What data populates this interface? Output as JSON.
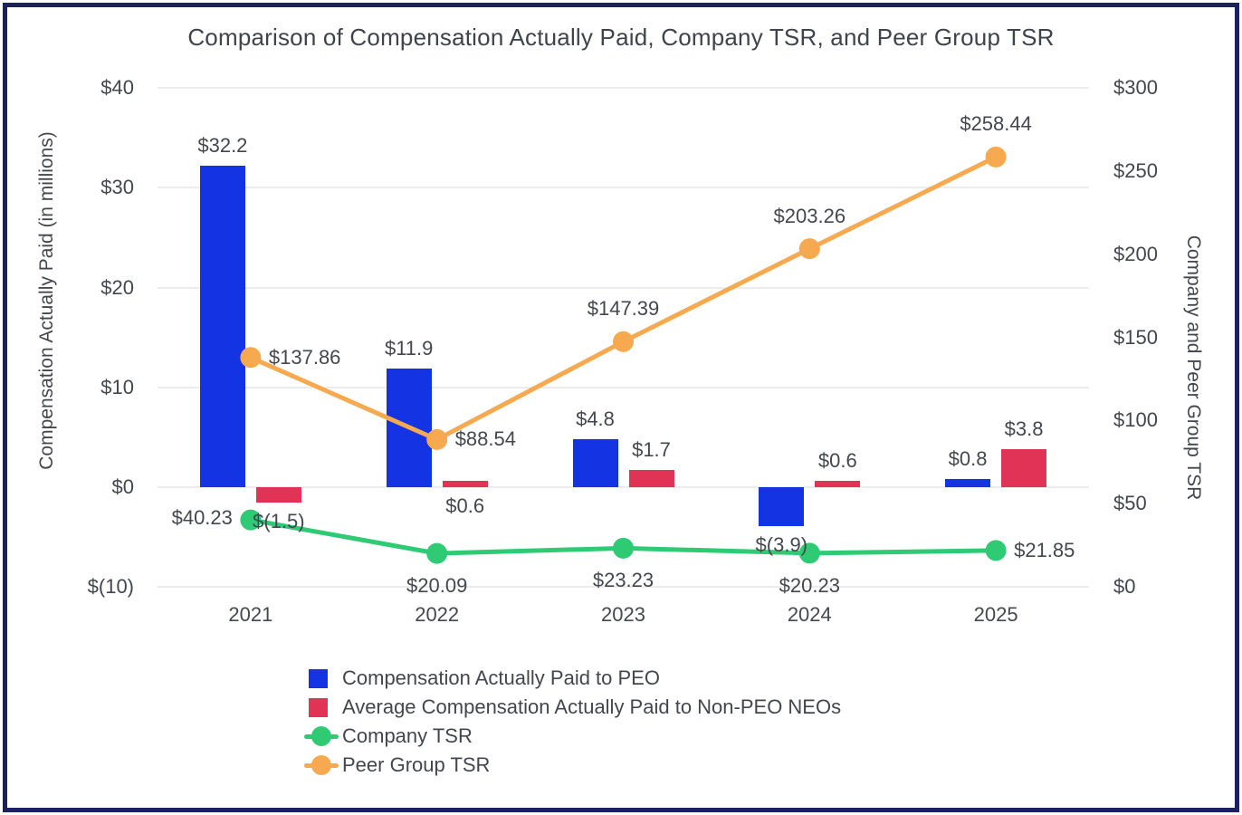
{
  "title": "Comparison of Compensation Actually Paid, Company TSR, and Peer Group TSR",
  "colors": {
    "peo_bar": "#1433e3",
    "neo_bar": "#e03356",
    "company_tsr": "#2fcb74",
    "peer_tsr": "#f6a94e",
    "grid": "#ececec",
    "text": "#43474d",
    "frame_border": "#1b2161"
  },
  "chart_data": {
    "type": "combo-bar-line",
    "categories": [
      "2021",
      "2022",
      "2023",
      "2024",
      "2025"
    ],
    "grid": "horizontal",
    "left_axis": {
      "label": "Compensation Actually Paid (in millions)",
      "ylim": [
        -10,
        40
      ],
      "ticks": [
        {
          "value": 40,
          "label": "$40"
        },
        {
          "value": 30,
          "label": "$30"
        },
        {
          "value": 20,
          "label": "$20"
        },
        {
          "value": 10,
          "label": "$10"
        },
        {
          "value": 0,
          "label": "$0"
        },
        {
          "value": -10,
          "label": "$(10)"
        }
      ]
    },
    "right_axis": {
      "label": "Company and Peer Group TSR",
      "ylim": [
        0,
        300
      ],
      "ticks": [
        {
          "value": 300,
          "label": "$300"
        },
        {
          "value": 250,
          "label": "$250"
        },
        {
          "value": 200,
          "label": "$200"
        },
        {
          "value": 150,
          "label": "$150"
        },
        {
          "value": 100,
          "label": "$100"
        },
        {
          "value": 50,
          "label": "$50"
        },
        {
          "value": 0,
          "label": "$0"
        }
      ]
    },
    "bar_series": [
      {
        "key": "peo",
        "name": "Compensation Actually Paid to PEO",
        "axis": "left",
        "color": "#1433e3",
        "values": [
          32.2,
          11.9,
          4.8,
          -3.9,
          0.8
        ],
        "labels": [
          "$32.2",
          "$11.9",
          "$4.8",
          "$(3.9)",
          "$0.8"
        ],
        "label_pos": [
          "above",
          "above",
          "above",
          "below",
          "above"
        ]
      },
      {
        "key": "neo",
        "name": "Average Compensation Actually Paid to Non-PEO NEOs",
        "axis": "left",
        "color": "#e03356",
        "values": [
          -1.5,
          0.6,
          1.7,
          0.6,
          3.8
        ],
        "labels": [
          "$(1.5)",
          "$0.6",
          "$1.7",
          "$0.6",
          "$3.8"
        ],
        "label_pos": [
          "below",
          "below",
          "above",
          "above",
          "above"
        ]
      }
    ],
    "line_series": [
      {
        "key": "company-tsr",
        "name": "Company TSR",
        "axis": "right",
        "color": "#2fcb74",
        "values": [
          40.23,
          20.09,
          23.23,
          20.23,
          21.85
        ],
        "labels": [
          "$40.23",
          "$20.09",
          "$23.23",
          "$20.23",
          "$21.85"
        ],
        "label_pos": [
          "left",
          "below",
          "below",
          "below",
          "right"
        ]
      },
      {
        "key": "peer-group-tsr",
        "name": "Peer Group TSR",
        "axis": "right",
        "color": "#f6a94e",
        "values": [
          137.86,
          88.54,
          147.39,
          203.26,
          258.44
        ],
        "labels": [
          "$137.86",
          "$88.54",
          "$147.39",
          "$203.26",
          "$258.44"
        ],
        "label_pos": [
          "right",
          "right",
          "above",
          "above",
          "above"
        ]
      }
    ]
  }
}
